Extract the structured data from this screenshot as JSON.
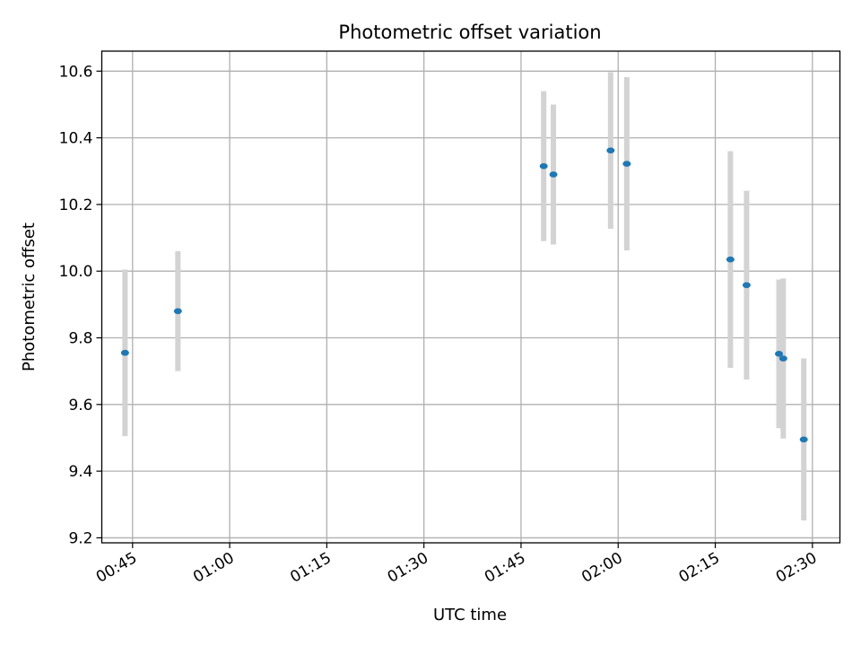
{
  "chart_data": {
    "type": "scatter",
    "title": "Photometric offset variation",
    "xlabel": "UTC time",
    "ylabel": "Photometric offset",
    "xlim": [
      "00:40:15",
      "02:34:15"
    ],
    "ylim": [
      9.185,
      10.66
    ],
    "x_ticks": [
      "00:45",
      "01:00",
      "01:15",
      "01:30",
      "01:45",
      "02:00",
      "02:15",
      "02:30"
    ],
    "y_ticks": [
      "9.2",
      "9.4",
      "9.6",
      "9.8",
      "10.0",
      "10.2",
      "10.4",
      "10.6"
    ],
    "grid": true,
    "colors": {
      "marker": "#1f77b4",
      "errorbar": "#d3d3d3",
      "grid": "#b0b0b0"
    },
    "points": [
      {
        "x": "00:43:50",
        "y": 9.755,
        "err": 0.25
      },
      {
        "x": "00:52:00",
        "y": 9.88,
        "err": 0.18
      },
      {
        "x": "01:48:30",
        "y": 10.315,
        "err": 0.225
      },
      {
        "x": "01:50:00",
        "y": 10.29,
        "err": 0.21
      },
      {
        "x": "01:58:50",
        "y": 10.362,
        "err": 0.235
      },
      {
        "x": "02:01:20",
        "y": 10.322,
        "err": 0.26
      },
      {
        "x": "02:17:20",
        "y": 10.035,
        "err": 0.325
      },
      {
        "x": "02:19:50",
        "y": 9.958,
        "err": 0.283
      },
      {
        "x": "02:24:50",
        "y": 9.752,
        "err": 0.223
      },
      {
        "x": "02:25:30",
        "y": 9.738,
        "err": 0.24
      },
      {
        "x": "02:28:40",
        "y": 9.495,
        "err": 0.243
      }
    ]
  }
}
